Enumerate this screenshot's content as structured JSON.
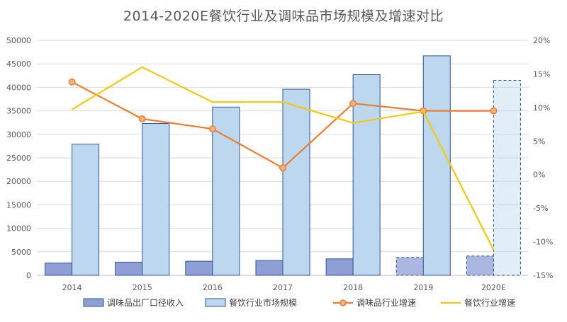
{
  "chart_data": {
    "type": "bar",
    "title": "2014-2020E餐饮行业及调味品市场规模及增速对比",
    "categories": [
      "2014",
      "2015",
      "2016",
      "2017",
      "2018",
      "2019",
      "2020E"
    ],
    "y_left": {
      "ticks": [
        "0",
        "5000",
        "10000",
        "15000",
        "20000",
        "25000",
        "30000",
        "35000",
        "40000",
        "45000",
        "50000"
      ],
      "ylim": [
        0,
        50000
      ]
    },
    "y_right": {
      "ticks": [
        "-15%",
        "-10%",
        "-5%",
        "0%",
        "5%",
        "10%",
        "15%",
        "20%"
      ],
      "ylim": [
        -15,
        20
      ]
    },
    "grid": true,
    "legend_position": "bottom",
    "series": [
      {
        "name": "调味品出厂口径收入",
        "kind": "bar",
        "axis": "left",
        "color": "#8f9fd6",
        "values": [
          2600,
          2800,
          3000,
          3150,
          3500,
          3800,
          4100
        ],
        "estimated": [
          false,
          false,
          false,
          false,
          false,
          true,
          true
        ]
      },
      {
        "name": "餐饮行业市场规模",
        "kind": "bar",
        "axis": "left",
        "color": "#bdd7ee",
        "values": [
          27900,
          32300,
          35800,
          39600,
          42700,
          46700,
          41500
        ],
        "estimated": [
          false,
          false,
          false,
          false,
          false,
          false,
          true
        ]
      },
      {
        "name": "调味品行业增速",
        "kind": "line",
        "axis": "right",
        "color": "#ed7d31",
        "marker": "circle",
        "values": [
          13.8,
          8.3,
          6.8,
          1.0,
          10.6,
          9.5,
          9.5
        ]
      },
      {
        "name": "餐饮行业增速",
        "kind": "line",
        "axis": "right",
        "color": "#f2c811",
        "values": [
          9.7,
          16.0,
          10.8,
          10.8,
          7.7,
          9.4,
          -11.2
        ]
      }
    ]
  }
}
